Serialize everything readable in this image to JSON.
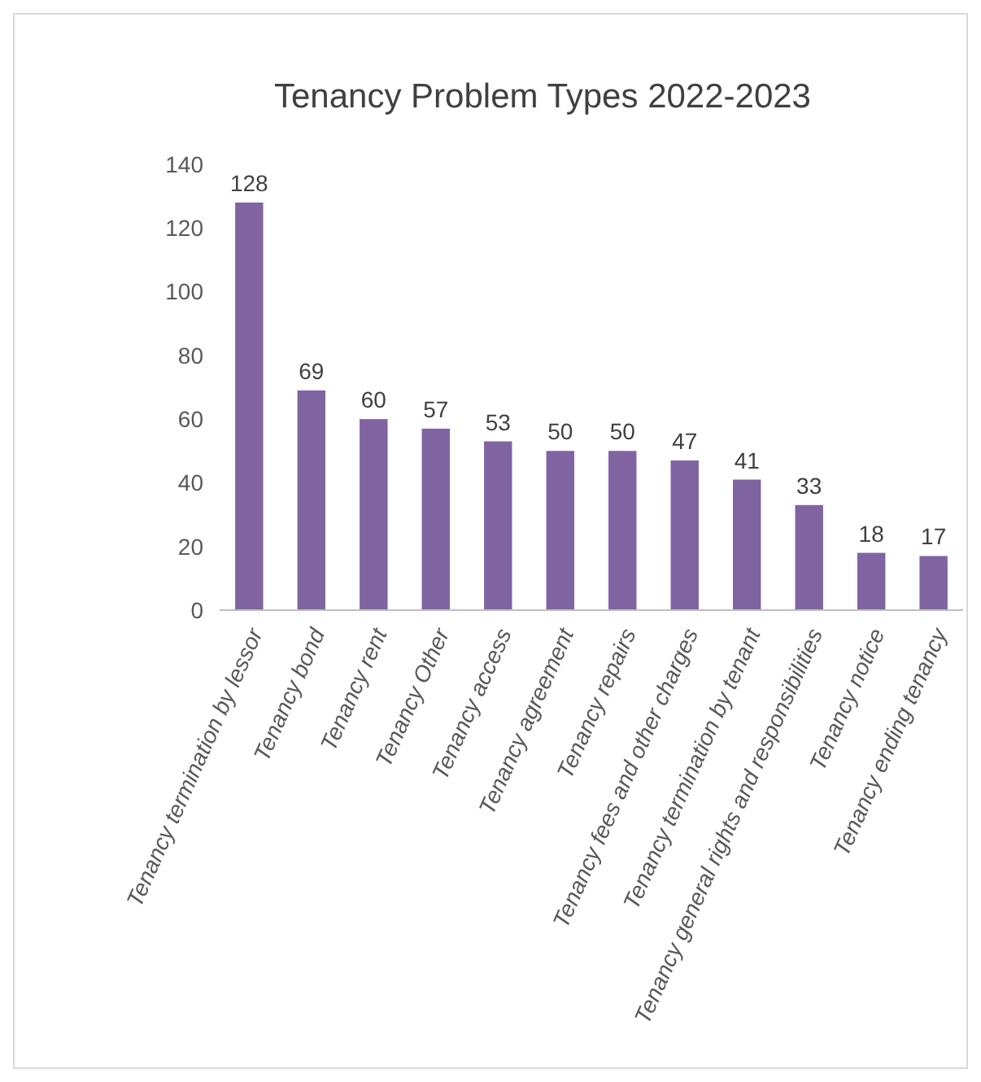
{
  "chart_data": {
    "type": "bar",
    "title": "Tenancy Problem Types 2022-2023",
    "categories": [
      "Tenancy termination by lessor",
      "Tenancy bond",
      "Tenancy rent",
      "Tenancy Other",
      "Tenancy access",
      "Tenancy agreement",
      "Tenancy repairs",
      "Tenancy fees and other charges",
      "Tenancy termination by tenant",
      "Tenancy general rights and responsibilities",
      "Tenancy notice",
      "Tenancy ending tenancy"
    ],
    "values": [
      128,
      69,
      60,
      57,
      53,
      50,
      50,
      47,
      41,
      33,
      18,
      17
    ],
    "color": "#8064a2",
    "ylim": [
      0,
      140
    ],
    "yticks": [
      0,
      20,
      40,
      60,
      80,
      100,
      120,
      140
    ],
    "grid": false,
    "data_labels": true
  }
}
